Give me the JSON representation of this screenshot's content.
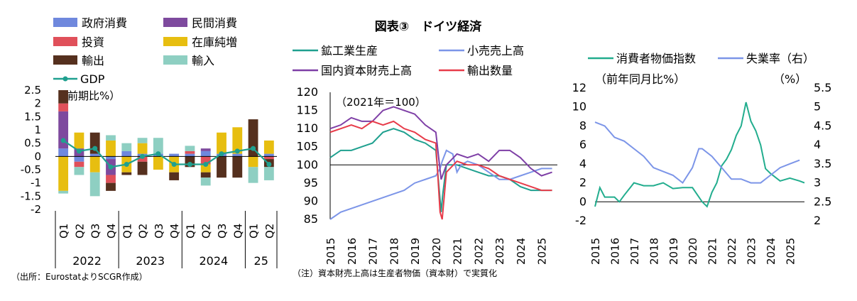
{
  "header": {
    "title": "図表③　ドイツ経済",
    "source": "（出所：EurostatよりSCGR作成）",
    "note": "（注）資本財売上高は生産者物価（資本財）で実質化"
  },
  "colors": {
    "gov": "#6F88DD",
    "priv": "#7E4A9E",
    "inv": "#E0505A",
    "inventory": "#E7BE10",
    "exports": "#55301E",
    "imports": "#8ECFC2",
    "gdp": "#1FA08F",
    "mining": "#1FA08F",
    "retail": "#7C95E8",
    "capital": "#7E3FA6",
    "exportvol": "#E73C4A",
    "cpi": "#22AD8E",
    "unemp": "#7C95E8"
  },
  "chart_data": [
    {
      "type": "bar",
      "ylabel": "（前期比%）",
      "ylim": [
        -2,
        2.5
      ],
      "yticks": [
        "2.5",
        "2",
        "1.5",
        "1",
        "0.5",
        "0",
        "-0.5",
        "-1",
        "-1.5",
        "-2"
      ],
      "categories": [
        "Q1",
        "Q2",
        "Q3",
        "Q4",
        "Q1",
        "Q2",
        "Q3",
        "Q4",
        "Q1",
        "Q2",
        "Q3",
        "Q4",
        "Q1",
        "Q2"
      ],
      "years": [
        {
          "label": "2022",
          "from": 0,
          "to": 4
        },
        {
          "label": "2023",
          "from": 4,
          "to": 8
        },
        {
          "label": "2024",
          "from": 8,
          "to": 12
        },
        {
          "label": "25",
          "from": 12,
          "to": 14
        }
      ],
      "legend": [
        "政府消費",
        "民間消費",
        "投資",
        "在庫純増",
        "輸出",
        "輸入",
        "GDP"
      ],
      "series": [
        {
          "name": "政府消費",
          "values": [
            0.3,
            -0.2,
            0.1,
            -0.1,
            0.2,
            0.1,
            0.1,
            0.1,
            0.1,
            0.2,
            0.1,
            0.1,
            0.0,
            0.1
          ]
        },
        {
          "name": "民間消費",
          "values": [
            1.4,
            0.3,
            0.0,
            -0.6,
            0.0,
            0.0,
            0.0,
            0.0,
            0.0,
            0.1,
            0.0,
            0.0,
            0.0,
            0.0
          ]
        },
        {
          "name": "投資",
          "values": [
            0.3,
            -0.2,
            0.0,
            -0.3,
            0.0,
            -0.2,
            0.0,
            0.0,
            0.1,
            -0.3,
            0.0,
            0.0,
            0.0,
            -0.1
          ]
        },
        {
          "name": "在庫純増",
          "values": [
            -1.3,
            0.6,
            -0.6,
            0.6,
            -0.6,
            0.4,
            -0.5,
            -0.6,
            0.0,
            -0.3,
            0.8,
            1.0,
            -0.4,
            0.5
          ]
        },
        {
          "name": "輸出",
          "values": [
            0.5,
            0.0,
            0.8,
            -0.3,
            -0.1,
            -0.5,
            0.0,
            -0.3,
            -0.4,
            -0.2,
            -0.8,
            -0.8,
            1.4,
            -0.3
          ]
        },
        {
          "name": "輸入",
          "values": [
            -0.1,
            -0.3,
            -0.9,
            0.2,
            0.3,
            0.2,
            0.6,
            0.0,
            0.2,
            -0.3,
            0.0,
            0.0,
            -0.6,
            -0.5
          ]
        },
        {
          "name": "GDP",
          "values": [
            0.6,
            0.2,
            0.3,
            -0.4,
            -0.3,
            0.0,
            0.1,
            -0.3,
            -0.3,
            -0.3,
            0.1,
            0.2,
            0.3,
            -0.3
          ]
        }
      ]
    },
    {
      "type": "line",
      "annotation": "（2021年＝100）",
      "ylim": [
        85,
        120
      ],
      "yticks": [
        "120",
        "115",
        "110",
        "105",
        "100",
        "95",
        "90",
        "85"
      ],
      "xlim": [
        2015,
        2025.75
      ],
      "xticks": [
        "2015",
        "2016",
        "2017",
        "2018",
        "2019",
        "2020",
        "2021",
        "2022",
        "2023",
        "2024",
        "2025"
      ],
      "legend": [
        "鉱工業生産",
        "小売売上高",
        "国内資本財売上高",
        "輸出数量"
      ],
      "series": [
        {
          "name": "鉱工業生産",
          "x": [
            2015,
            2015.5,
            2016,
            2016.5,
            2017,
            2017.5,
            2018,
            2018.5,
            2019,
            2019.5,
            2020,
            2020.25,
            2020.33,
            2020.5,
            2021,
            2021.5,
            2022,
            2022.5,
            2023,
            2023.5,
            2024,
            2024.5,
            2025,
            2025.5
          ],
          "y": [
            102,
            104,
            104,
            105,
            106,
            109,
            110,
            109,
            107,
            106,
            104,
            87,
            92,
            100,
            100,
            99,
            98,
            97,
            97,
            96,
            94,
            93,
            93,
            93
          ]
        },
        {
          "name": "小売売上高",
          "x": [
            2015,
            2015.5,
            2016,
            2016.5,
            2017,
            2017.5,
            2018,
            2018.5,
            2019,
            2019.5,
            2020,
            2020.2,
            2020.3,
            2020.5,
            2020.8,
            2021,
            2021.2,
            2021.5,
            2022,
            2022.5,
            2023,
            2023.5,
            2024,
            2024.5,
            2025,
            2025.5
          ],
          "y": [
            85,
            87,
            88,
            89,
            90,
            91,
            92,
            93,
            95,
            96,
            97,
            99,
            101,
            104,
            103,
            98,
            100,
            101,
            100,
            98,
            96,
            96,
            97,
            98,
            99,
            99
          ]
        },
        {
          "name": "国内資本財売上高",
          "x": [
            2015,
            2015.5,
            2016,
            2016.5,
            2017,
            2017.5,
            2018,
            2018.5,
            2019,
            2019.5,
            2020,
            2020.25,
            2020.5,
            2021,
            2021.5,
            2022,
            2022.5,
            2023,
            2023.5,
            2024,
            2024.5,
            2025,
            2025.5
          ],
          "y": [
            110,
            111,
            113,
            112,
            112,
            115,
            116,
            115,
            114,
            111,
            109,
            96,
            100,
            103,
            102,
            103,
            101,
            104,
            104,
            102,
            99,
            97,
            98
          ]
        },
        {
          "name": "輸出数量",
          "x": [
            2015,
            2015.5,
            2016,
            2016.5,
            2017,
            2017.5,
            2018,
            2018.5,
            2019,
            2019.5,
            2020,
            2020.2,
            2020.3,
            2020.5,
            2021,
            2021.5,
            2022,
            2022.5,
            2023,
            2023.5,
            2024,
            2024.5,
            2025,
            2025.5
          ],
          "y": [
            109,
            110,
            111,
            110,
            112,
            111,
            112,
            110,
            109,
            107,
            106,
            87,
            85,
            98,
            101,
            100,
            100,
            99,
            97,
            96,
            95,
            94,
            93,
            93
          ]
        }
      ]
    },
    {
      "type": "line",
      "ylabel_left": "（前年同月比%）",
      "ylabel_right": "（%）",
      "ylim_left": [
        -2,
        12
      ],
      "ylim_right": [
        2,
        5.5
      ],
      "yticks_left": [
        "12",
        "10",
        "8",
        "6",
        "4",
        "2",
        "0",
        "-2"
      ],
      "yticks_right": [
        "5.5",
        "5",
        "4.5",
        "4",
        "3.5",
        "3",
        "2.5",
        "2"
      ],
      "xlim": [
        2015,
        2025.75
      ],
      "xticks": [
        "2015",
        "2016",
        "2017",
        "2018",
        "2019",
        "2020",
        "2021",
        "2022",
        "2023",
        "2024",
        "2025"
      ],
      "legend": [
        "消費者物価指数",
        "失業率（右）"
      ],
      "series": [
        {
          "name": "消費者物価指数",
          "axis": "left",
          "x": [
            2015,
            2015.25,
            2015.5,
            2016,
            2016.25,
            2016.5,
            2017,
            2017.5,
            2018,
            2018.5,
            2019,
            2019.5,
            2020,
            2020.5,
            2020.75,
            2021,
            2021.25,
            2021.5,
            2021.75,
            2022,
            2022.25,
            2022.5,
            2022.75,
            2023,
            2023.25,
            2023.5,
            2023.75,
            2024,
            2024.5,
            2025,
            2025.5,
            2025.75
          ],
          "y": [
            -0.5,
            1.5,
            0.5,
            0.5,
            0,
            0.7,
            2,
            1.7,
            1.7,
            2,
            1.4,
            1.5,
            1.5,
            0,
            -0.5,
            1,
            2,
            3.8,
            4.5,
            5.5,
            7,
            8,
            10.5,
            8.5,
            7.5,
            6,
            3.5,
            3,
            2.2,
            2.5,
            2.2,
            2
          ]
        },
        {
          "name": "失業率（右）",
          "axis": "right",
          "x": [
            2015,
            2015.5,
            2016,
            2016.5,
            2017,
            2017.5,
            2018,
            2018.5,
            2019,
            2019.5,
            2020,
            2020.33,
            2020.5,
            2021,
            2021.5,
            2022,
            2022.5,
            2023,
            2023.5,
            2024,
            2024.5,
            2025,
            2025.5
          ],
          "y": [
            4.6,
            4.5,
            4.2,
            4.1,
            3.9,
            3.7,
            3.4,
            3.3,
            3.2,
            3.0,
            3.4,
            3.9,
            3.9,
            3.7,
            3.4,
            3.1,
            3.1,
            3.0,
            3.0,
            3.2,
            3.4,
            3.5,
            3.6
          ]
        }
      ]
    }
  ]
}
